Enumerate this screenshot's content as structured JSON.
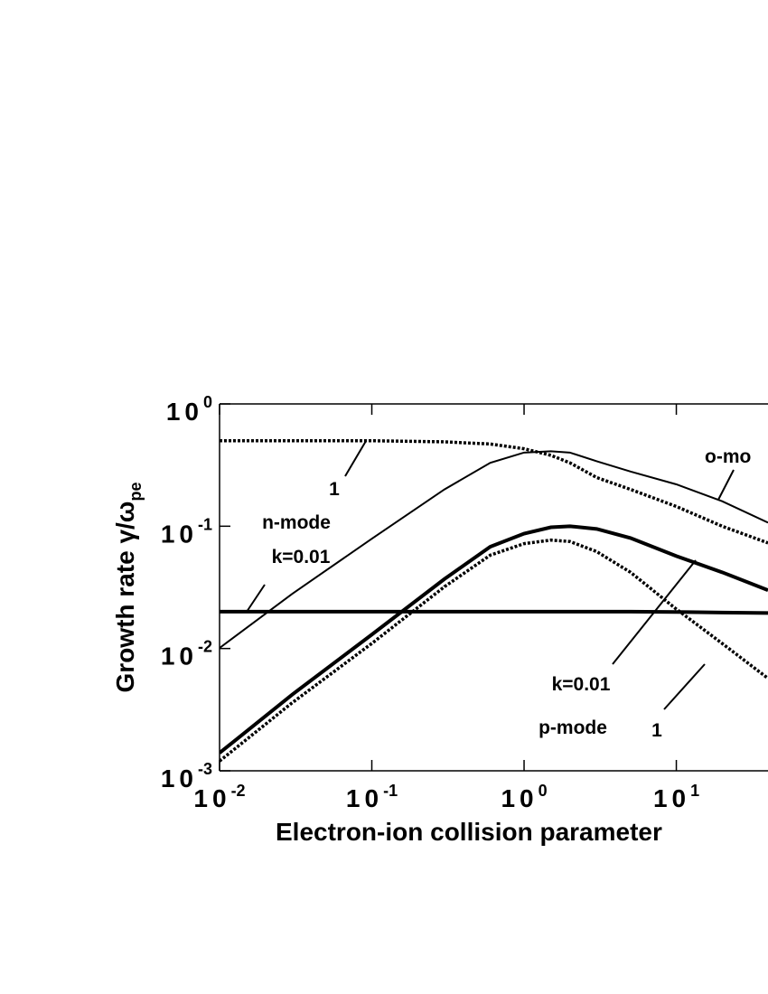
{
  "chart_data": {
    "type": "line",
    "x_label": "Electron-ion collision parameter",
    "y_label": "Growth rate γ/ω",
    "y_label_sub": "pe",
    "log_x": true,
    "log_y": true,
    "xlim": [
      0.01,
      40
    ],
    "ylim": [
      0.001,
      1
    ],
    "xticks": [
      {
        "value": 0.01,
        "label": "10",
        "exponent": "-2"
      },
      {
        "value": 0.1,
        "label": "10",
        "exponent": "-1"
      },
      {
        "value": 1,
        "label": "10",
        "exponent": "0"
      },
      {
        "value": 10,
        "label": "10",
        "exponent": "1"
      }
    ],
    "yticks": [
      {
        "value": 0.001,
        "label": "10",
        "exponent": "-3"
      },
      {
        "value": 0.01,
        "label": "10",
        "exponent": "-2"
      },
      {
        "value": 0.1,
        "label": "10",
        "exponent": "-1"
      },
      {
        "value": 1,
        "label": "10",
        "exponent": "0"
      }
    ],
    "x": [
      0.01,
      0.03,
      0.1,
      0.3,
      0.6,
      1,
      1.5,
      2,
      3,
      5,
      10,
      20,
      40
    ],
    "series": [
      {
        "color": "#000000",
        "style": "dotted",
        "width": 3.5,
        "values": [
          0.5,
          0.5,
          0.5,
          0.49,
          0.47,
          0.43,
          0.38,
          0.33,
          0.25,
          0.2,
          0.145,
          0.1,
          0.073
        ]
      },
      {
        "color": "#000000",
        "style": "solid",
        "width": 2,
        "values": [
          0.0101,
          0.028,
          0.079,
          0.2,
          0.33,
          0.4,
          0.41,
          0.4,
          0.34,
          0.28,
          0.22,
          0.16,
          0.107
        ]
      },
      {
        "color": "#000000",
        "style": "solid",
        "width": 4,
        "values": [
          0.0014,
          0.0042,
          0.013,
          0.037,
          0.068,
          0.087,
          0.098,
          0.1,
          0.095,
          0.08,
          0.057,
          0.042,
          0.03
        ]
      },
      {
        "color": "#000000",
        "style": "dotted",
        "width": 3.5,
        "values": [
          0.0012,
          0.0036,
          0.011,
          0.032,
          0.058,
          0.072,
          0.077,
          0.075,
          0.062,
          0.042,
          0.021,
          0.011,
          0.0057
        ]
      },
      {
        "color": "#000000",
        "style": "solid",
        "width": 4,
        "values": [
          0.02,
          0.02,
          0.02,
          0.02,
          0.02,
          0.02,
          0.02,
          0.02,
          0.02,
          0.02,
          0.0199,
          0.0197,
          0.0195
        ]
      }
    ],
    "annotations": [
      "1",
      "n-mode",
      "k=0.01",
      "o-mo",
      "k=0.01",
      "p-mode",
      "1"
    ]
  }
}
